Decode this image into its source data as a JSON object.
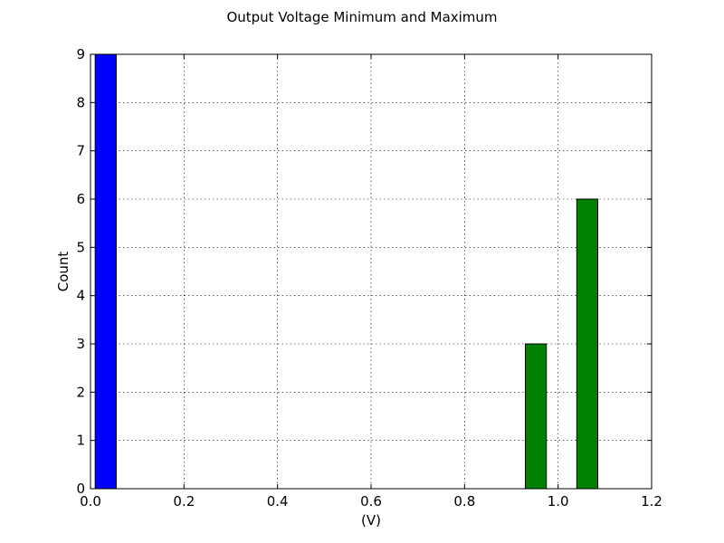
{
  "chart_data": {
    "type": "bar",
    "title": "Output Voltage Minimum and Maximum",
    "xlabel": "(V)",
    "ylabel": "Count",
    "xlim": [
      0.0,
      1.2
    ],
    "ylim": [
      0,
      9
    ],
    "xticks": [
      "0.0",
      "0.2",
      "0.4",
      "0.6",
      "0.8",
      "1.0",
      "1.2"
    ],
    "yticks": [
      "0",
      "1",
      "2",
      "3",
      "4",
      "5",
      "6",
      "7",
      "8",
      "9"
    ],
    "grid": true,
    "series": [
      {
        "color": "#0000ff",
        "bins": [
          {
            "x0": 0.01,
            "x1": 0.055,
            "count": 9
          }
        ]
      },
      {
        "color": "#008000",
        "bins": [
          {
            "x0": 0.93,
            "x1": 0.975,
            "count": 3
          },
          {
            "x0": 1.04,
            "x1": 1.085,
            "count": 6
          }
        ]
      }
    ]
  }
}
